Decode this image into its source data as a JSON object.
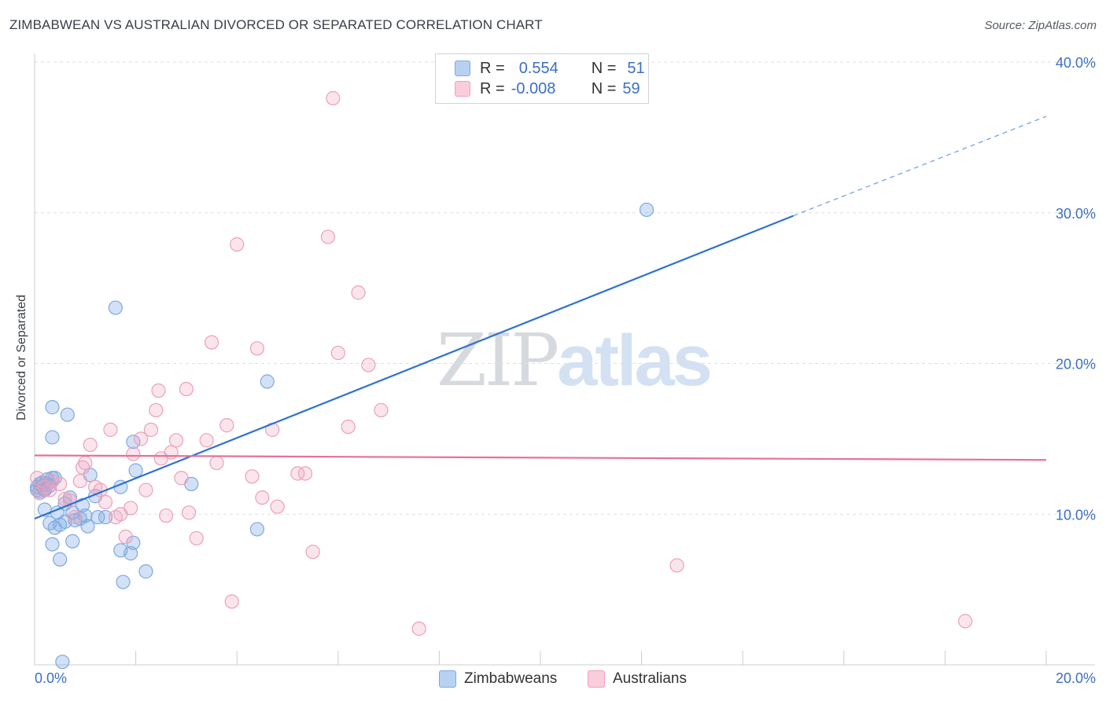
{
  "title": "ZIMBABWEAN VS AUSTRALIAN DIVORCED OR SEPARATED CORRELATION CHART",
  "source": "Source: ZipAtlas.com",
  "watermark": {
    "zip": "ZIP",
    "atlas": "atlas"
  },
  "colors": {
    "blue": "#7ea9e1",
    "blue_line": "#2f72d0",
    "pink": "#f0a0bc",
    "pink_line": "#e8709a",
    "axis_text": "#3b6fc4",
    "grid": "#dcdfe3"
  },
  "legend": {
    "rows": [
      {
        "r_label": "R =",
        "r_value": "0.554",
        "n_label": "N =",
        "n_value": "51"
      },
      {
        "r_label": "R =",
        "r_value": "-0.008",
        "n_label": "N =",
        "n_value": "59"
      }
    ]
  },
  "bottom_legend": [
    "Zimbabweans",
    "Australians"
  ],
  "chart_data": {
    "type": "scatter",
    "xlabel": "",
    "ylabel": "Divorced or Separated",
    "xlim": [
      0,
      20
    ],
    "ylim": [
      0,
      40
    ],
    "x_tick_labels": [
      "0.0%",
      "20.0%"
    ],
    "y_tick_labels": [
      "10.0%",
      "20.0%",
      "30.0%",
      "40.0%"
    ],
    "y_ticks": [
      10,
      20,
      30,
      40
    ],
    "grid": true,
    "legend_position": "top-center",
    "series": [
      {
        "name": "Zimbabweans",
        "color": "#7ea9e1",
        "trend": {
          "x": [
            0,
            15
          ],
          "y": [
            9.7,
            29.8
          ],
          "extend_to_x": 20,
          "extend_y": 36.4
        },
        "points": [
          [
            0.05,
            11.8
          ],
          [
            0.1,
            11.5
          ],
          [
            0.15,
            12.1
          ],
          [
            0.2,
            11.7
          ],
          [
            0.25,
            12.3
          ],
          [
            0.3,
            11.9
          ],
          [
            0.35,
            12.4
          ],
          [
            0.2,
            10.3
          ],
          [
            0.3,
            9.4
          ],
          [
            0.4,
            9.1
          ],
          [
            0.45,
            10.1
          ],
          [
            0.5,
            9.3
          ],
          [
            0.6,
            10.7
          ],
          [
            0.7,
            11.1
          ],
          [
            0.75,
            10.1
          ],
          [
            0.8,
            9.6
          ],
          [
            0.9,
            9.7
          ],
          [
            0.95,
            10.6
          ],
          [
            1.0,
            9.9
          ],
          [
            1.05,
            9.2
          ],
          [
            1.1,
            12.6
          ],
          [
            1.2,
            11.2
          ],
          [
            1.25,
            9.8
          ],
          [
            1.4,
            9.8
          ],
          [
            0.35,
            8.0
          ],
          [
            0.5,
            7.0
          ],
          [
            0.75,
            8.2
          ],
          [
            0.35,
            15.1
          ],
          [
            0.35,
            17.1
          ],
          [
            0.65,
            16.6
          ],
          [
            1.6,
            23.7
          ],
          [
            1.7,
            7.6
          ],
          [
            1.75,
            5.5
          ],
          [
            1.9,
            7.4
          ],
          [
            1.95,
            8.1
          ],
          [
            1.95,
            14.8
          ],
          [
            2.0,
            12.9
          ],
          [
            2.2,
            6.2
          ],
          [
            1.7,
            11.8
          ],
          [
            3.1,
            12.0
          ],
          [
            4.4,
            9.0
          ],
          [
            4.6,
            18.8
          ],
          [
            12.1,
            30.2
          ],
          [
            0.55,
            0.2
          ],
          [
            0.1,
            12.0
          ],
          [
            0.2,
            11.6
          ],
          [
            0.4,
            12.4
          ],
          [
            0.25,
            12.0
          ],
          [
            0.05,
            11.6
          ],
          [
            0.15,
            11.9
          ],
          [
            0.6,
            9.5
          ]
        ]
      },
      {
        "name": "Australians",
        "color": "#f0a0bc",
        "trend": {
          "x": [
            0,
            20
          ],
          "y": [
            13.9,
            13.6
          ]
        },
        "points": [
          [
            0.05,
            12.4
          ],
          [
            0.1,
            11.4
          ],
          [
            0.2,
            11.8
          ],
          [
            0.3,
            11.6
          ],
          [
            0.35,
            12.2
          ],
          [
            0.5,
            12.0
          ],
          [
            0.6,
            11.0
          ],
          [
            0.7,
            10.9
          ],
          [
            0.8,
            9.8
          ],
          [
            0.9,
            12.2
          ],
          [
            0.95,
            13.1
          ],
          [
            1.0,
            13.4
          ],
          [
            1.1,
            14.6
          ],
          [
            1.2,
            11.8
          ],
          [
            1.3,
            11.6
          ],
          [
            1.4,
            10.8
          ],
          [
            1.5,
            15.6
          ],
          [
            1.6,
            9.8
          ],
          [
            1.7,
            10.0
          ],
          [
            1.8,
            8.5
          ],
          [
            1.9,
            10.4
          ],
          [
            1.95,
            14.0
          ],
          [
            2.1,
            15.0
          ],
          [
            2.2,
            11.6
          ],
          [
            2.3,
            15.6
          ],
          [
            2.4,
            16.9
          ],
          [
            2.45,
            18.2
          ],
          [
            2.5,
            13.7
          ],
          [
            2.6,
            9.9
          ],
          [
            2.7,
            14.1
          ],
          [
            2.8,
            14.9
          ],
          [
            2.9,
            12.4
          ],
          [
            3.0,
            18.3
          ],
          [
            3.05,
            10.1
          ],
          [
            3.2,
            8.4
          ],
          [
            3.4,
            14.9
          ],
          [
            3.5,
            21.4
          ],
          [
            3.6,
            13.4
          ],
          [
            3.8,
            15.9
          ],
          [
            3.9,
            4.2
          ],
          [
            4.0,
            27.9
          ],
          [
            4.3,
            12.5
          ],
          [
            4.4,
            21.0
          ],
          [
            4.5,
            11.1
          ],
          [
            4.7,
            15.6
          ],
          [
            4.8,
            10.5
          ],
          [
            5.2,
            12.7
          ],
          [
            5.35,
            12.7
          ],
          [
            5.5,
            7.5
          ],
          [
            5.8,
            28.4
          ],
          [
            5.9,
            37.6
          ],
          [
            6.0,
            20.7
          ],
          [
            6.2,
            15.8
          ],
          [
            6.4,
            24.7
          ],
          [
            6.6,
            19.9
          ],
          [
            6.85,
            16.9
          ],
          [
            7.6,
            2.4
          ],
          [
            12.7,
            6.6
          ],
          [
            18.4,
            2.9
          ]
        ]
      }
    ]
  }
}
